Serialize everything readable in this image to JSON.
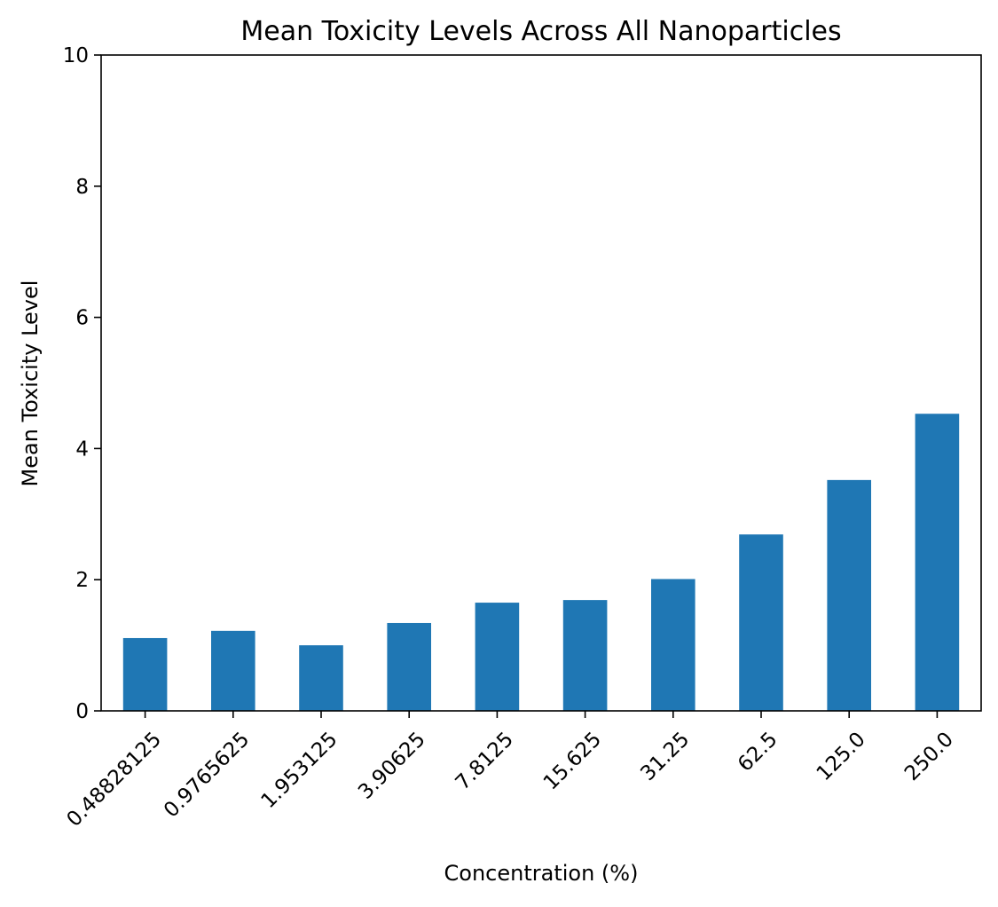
{
  "chart_data": {
    "type": "bar",
    "title": "Mean Toxicity Levels Across All Nanoparticles",
    "xlabel": "Concentration (%)",
    "ylabel": "Mean Toxicity Level",
    "categories": [
      "0.48828125",
      "0.9765625",
      "1.953125",
      "3.90625",
      "7.8125",
      "15.625",
      "31.25",
      "62.5",
      "125.0",
      "250.0"
    ],
    "values": [
      1.11,
      1.22,
      1.0,
      1.34,
      1.65,
      1.69,
      2.01,
      2.69,
      3.52,
      4.53
    ],
    "ylim": [
      0,
      10
    ],
    "yticks": [
      "0",
      "2",
      "4",
      "6",
      "8",
      "10"
    ],
    "grid": false,
    "legend": "none",
    "colors": {
      "bar": "#1f77b4",
      "axis": "#000000"
    }
  }
}
